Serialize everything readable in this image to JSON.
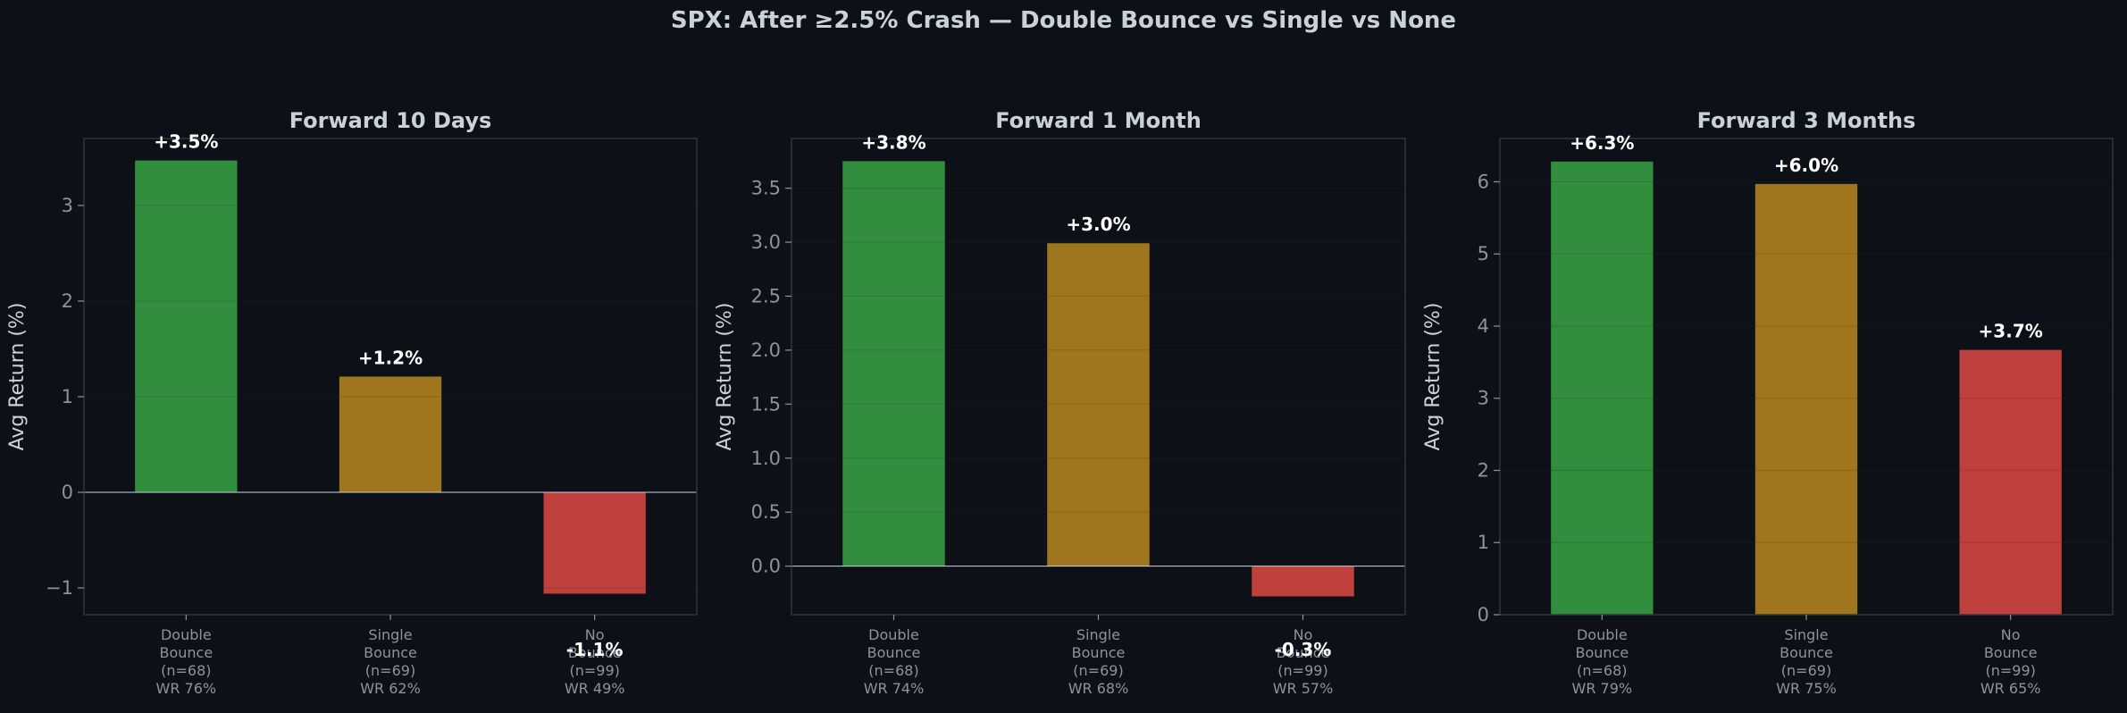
{
  "title": "SPX: After ≥2.5% Crash — Double Bounce vs Single vs None",
  "colors": {
    "background": "#0d1117",
    "axes_bg": "#0d1117",
    "spine": "#30363d",
    "grid": "#161b22",
    "text": "#c9d1d9",
    "tick_text": "#8b949e",
    "label_text": "#ffffff",
    "zero_line": "#c9d1d9"
  },
  "chart_data": [
    {
      "type": "bar",
      "title": "Forward 10 Days",
      "ylabel": "Avg Return (%)",
      "ylim": [
        -1.28,
        3.7
      ],
      "yticks": [
        -1,
        0,
        1,
        2,
        3
      ],
      "ytick_labels": [
        "−1",
        "0",
        "1",
        "2",
        "3"
      ],
      "categories": [
        [
          "Double",
          "Bounce",
          "(n=68)",
          "WR 76%"
        ],
        [
          "Single",
          "Bounce",
          "(n=69)",
          "WR 62%"
        ],
        [
          "No",
          "Bounce",
          "(n=99)",
          "WR 49%"
        ]
      ],
      "values": [
        3.47,
        1.21,
        -1.06
      ],
      "value_labels": [
        "+3.5%",
        "+1.2%",
        "-1.1%"
      ],
      "bar_colors": [
        "#33963f",
        "#a87c1e",
        "#c9433e"
      ]
    },
    {
      "type": "bar",
      "title": "Forward 1 Month",
      "ylabel": "Avg Return (%)",
      "ylim": [
        -0.45,
        3.96
      ],
      "yticks": [
        0,
        0.5,
        1,
        1.5,
        2,
        2.5,
        3,
        3.5
      ],
      "ytick_labels": [
        "0.0",
        "0.5",
        "1.0",
        "1.5",
        "2.0",
        "2.5",
        "3.0",
        "3.5"
      ],
      "categories": [
        [
          "Double",
          "Bounce",
          "(n=68)",
          "WR 74%"
        ],
        [
          "Single",
          "Bounce",
          "(n=69)",
          "WR 68%"
        ],
        [
          "No",
          "Bounce",
          "(n=99)",
          "WR 57%"
        ]
      ],
      "values": [
        3.75,
        2.99,
        -0.28
      ],
      "value_labels": [
        "+3.8%",
        "+3.0%",
        "-0.3%"
      ],
      "bar_colors": [
        "#33963f",
        "#a87c1e",
        "#c9433e"
      ]
    },
    {
      "type": "bar",
      "title": "Forward 3 Months",
      "ylabel": "Avg Return (%)",
      "ylim": [
        0,
        6.6
      ],
      "yticks": [
        0,
        1,
        2,
        3,
        4,
        5,
        6
      ],
      "ytick_labels": [
        "0",
        "1",
        "2",
        "3",
        "4",
        "5",
        "6"
      ],
      "categories": [
        [
          "Double",
          "Bounce",
          "(n=68)",
          "WR 79%"
        ],
        [
          "Single",
          "Bounce",
          "(n=69)",
          "WR 75%"
        ],
        [
          "No",
          "Bounce",
          "(n=99)",
          "WR 65%"
        ]
      ],
      "values": [
        6.28,
        5.97,
        3.67
      ],
      "value_labels": [
        "+6.3%",
        "+6.0%",
        "+3.7%"
      ],
      "bar_colors": [
        "#33963f",
        "#a87c1e",
        "#c9433e"
      ]
    }
  ]
}
